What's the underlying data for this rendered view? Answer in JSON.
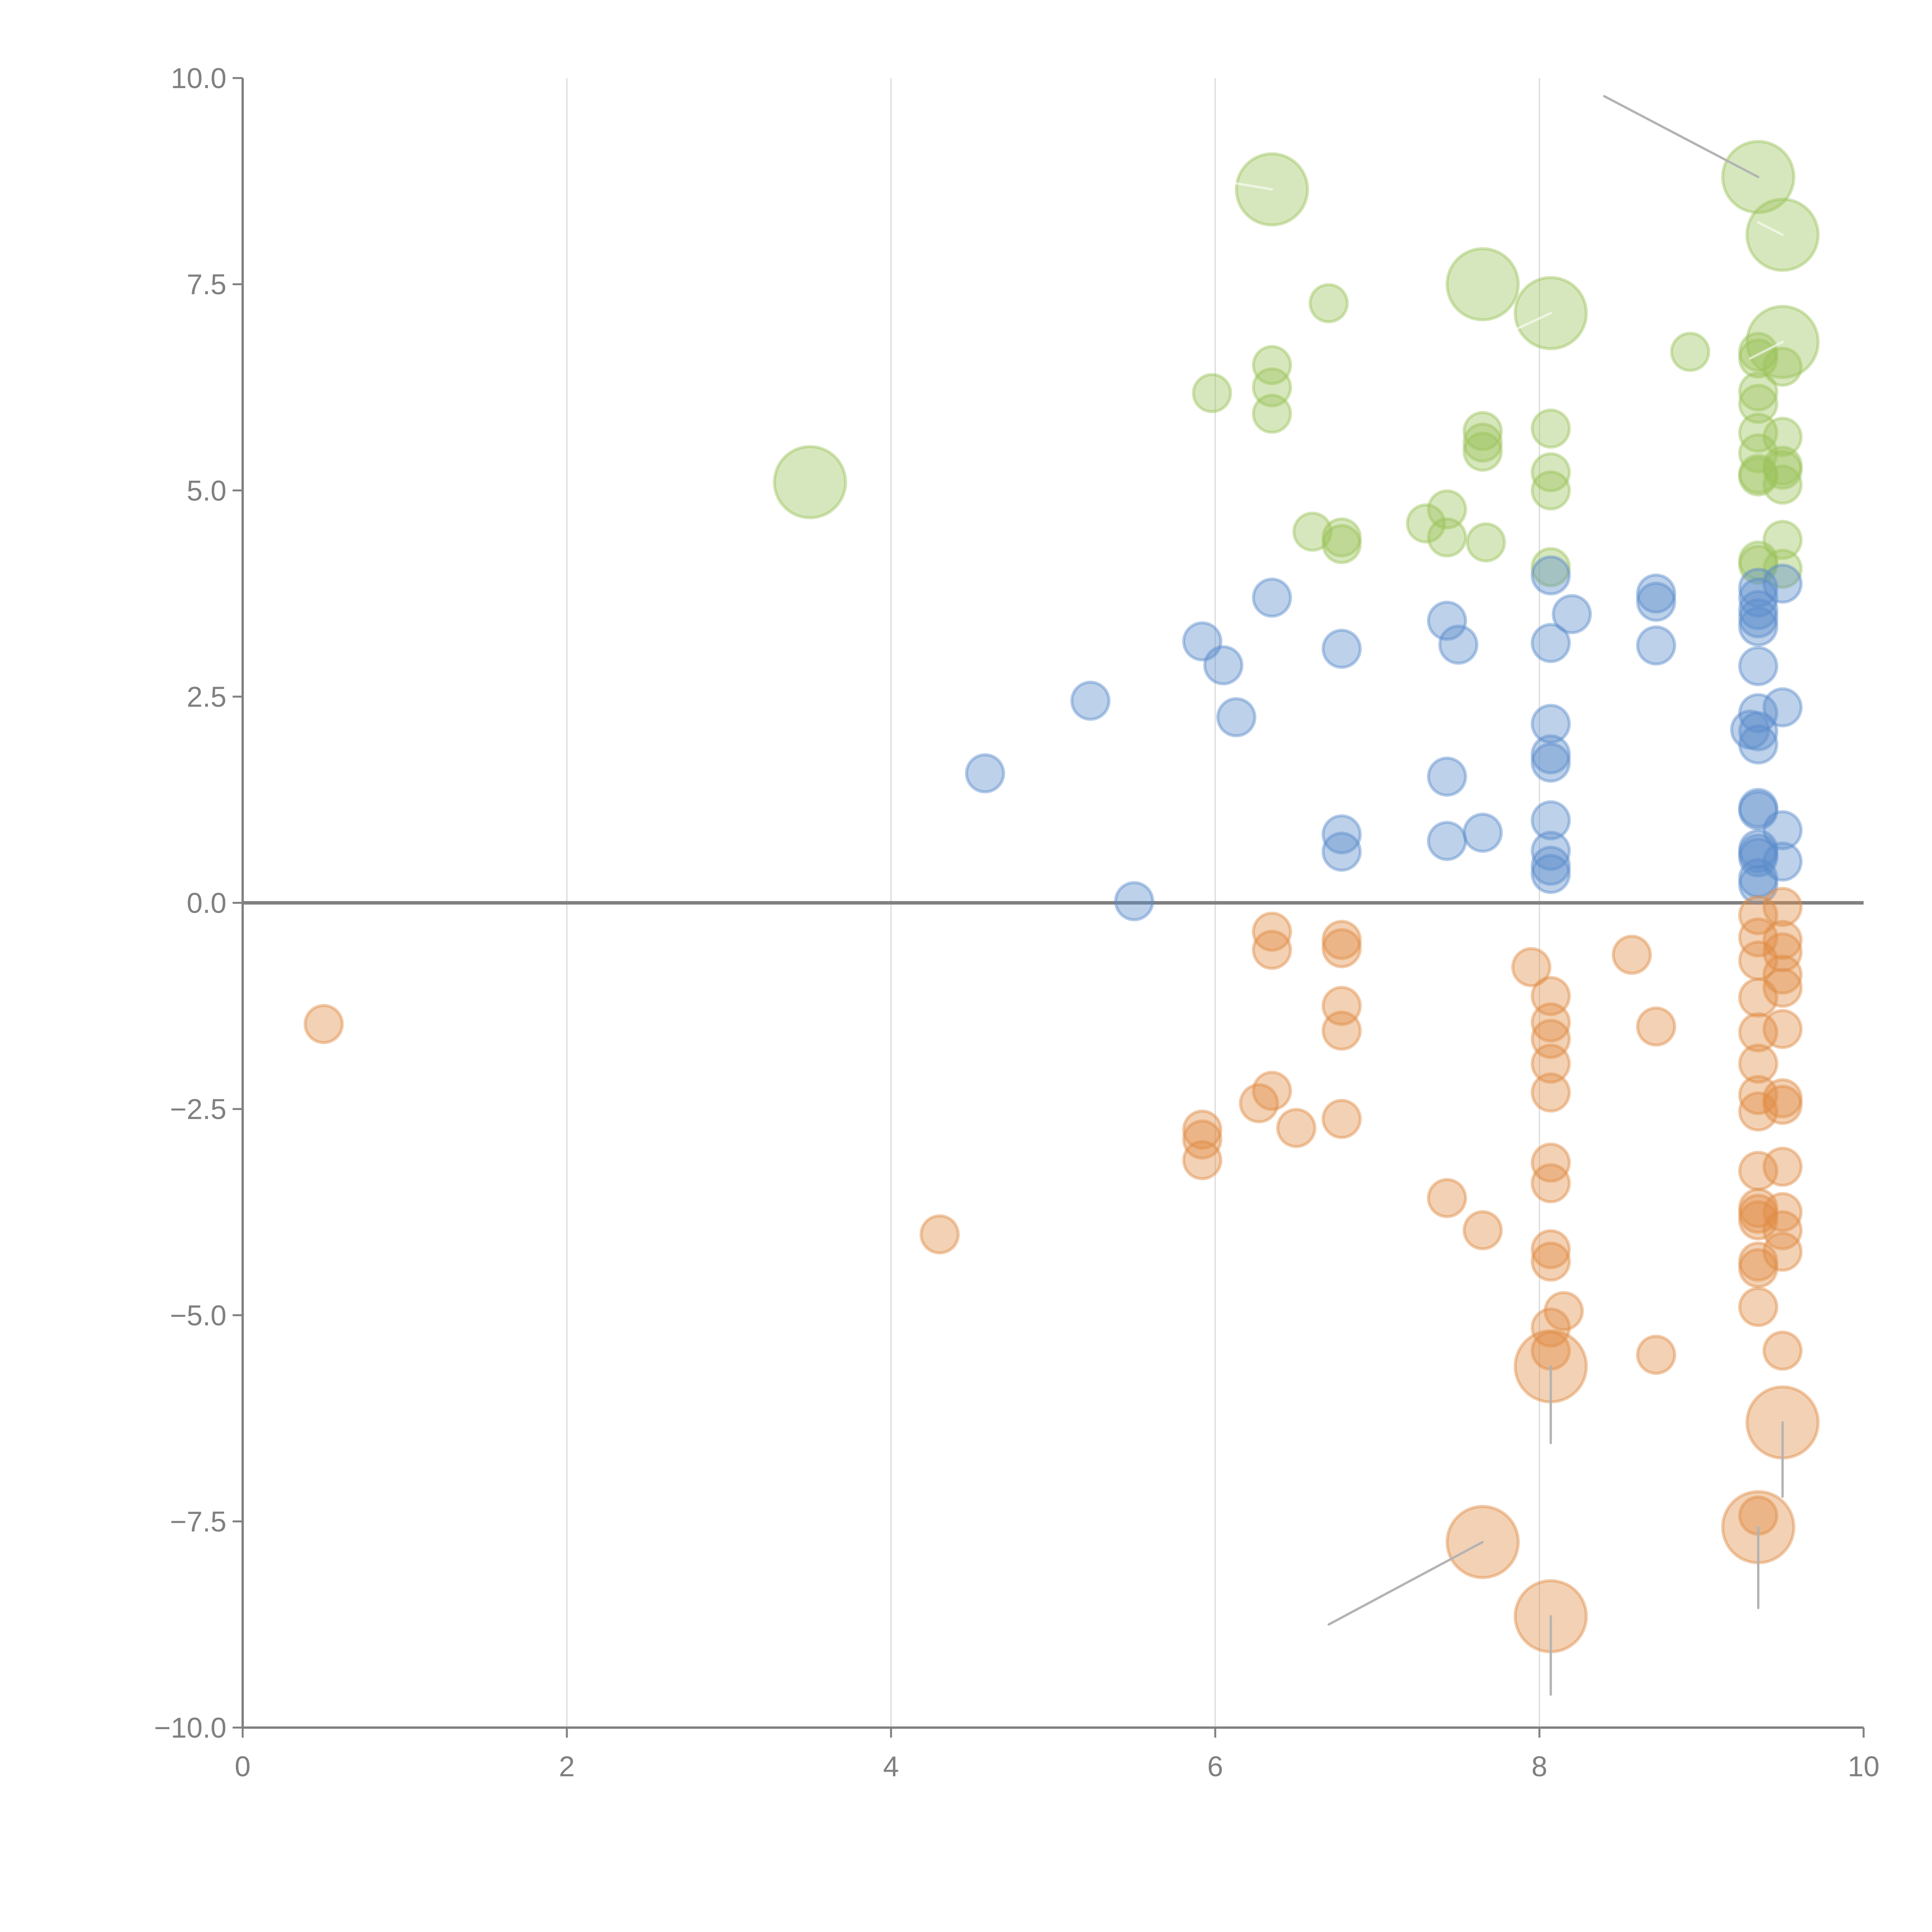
{
  "chart_data": {
    "type": "scatter",
    "subtype": "bubble",
    "title": "",
    "xlabel": "",
    "ylabel": "",
    "xlim": [
      0,
      10
    ],
    "ylim": [
      -10,
      10
    ],
    "x_ticks": [
      "0",
      "2",
      "4",
      "6",
      "8",
      "10"
    ],
    "y_ticks": [
      "10.0",
      "7.5",
      "5.0",
      "2.5",
      "0.0",
      "−2.5",
      "−5.0",
      "−7.5",
      "−10.0"
    ],
    "x_tick_values": [
      0,
      2,
      4,
      6,
      8,
      10
    ],
    "y_tick_values": [
      10,
      7.5,
      5,
      2.5,
      0,
      -2.5,
      -5,
      -7.5,
      -10
    ],
    "grid": "vertical",
    "zero_line": true,
    "legend": "none",
    "series": [
      {
        "name": "green",
        "color": "#9cc35a",
        "points": [
          {
            "x": 6.35,
            "y": 8.65,
            "size": 3
          },
          {
            "x": 9.35,
            "y": 8.8,
            "size": 3
          },
          {
            "x": 9.5,
            "y": 8.1,
            "size": 3
          },
          {
            "x": 7.65,
            "y": 7.5,
            "size": 3
          },
          {
            "x": 8.07,
            "y": 7.15,
            "size": 3
          },
          {
            "x": 6.7,
            "y": 7.27,
            "size": 1
          },
          {
            "x": 9.5,
            "y": 6.8,
            "size": 3
          },
          {
            "x": 8.93,
            "y": 6.68,
            "size": 1
          },
          {
            "x": 9.35,
            "y": 6.68,
            "size": 1
          },
          {
            "x": 9.35,
            "y": 6.6,
            "size": 1
          },
          {
            "x": 9.5,
            "y": 6.5,
            "size": 1
          },
          {
            "x": 6.35,
            "y": 6.52,
            "size": 1
          },
          {
            "x": 6.35,
            "y": 6.25,
            "size": 1
          },
          {
            "x": 5.98,
            "y": 6.18,
            "size": 1
          },
          {
            "x": 6.35,
            "y": 5.93,
            "size": 1
          },
          {
            "x": 9.35,
            "y": 6.2,
            "size": 1
          },
          {
            "x": 9.35,
            "y": 6.05,
            "size": 1
          },
          {
            "x": 9.35,
            "y": 5.7,
            "size": 1
          },
          {
            "x": 9.5,
            "y": 5.65,
            "size": 1
          },
          {
            "x": 7.65,
            "y": 5.72,
            "size": 1
          },
          {
            "x": 7.65,
            "y": 5.58,
            "size": 1
          },
          {
            "x": 7.65,
            "y": 5.47,
            "size": 1
          },
          {
            "x": 8.07,
            "y": 5.75,
            "size": 1
          },
          {
            "x": 9.35,
            "y": 5.45,
            "size": 1
          },
          {
            "x": 9.5,
            "y": 5.3,
            "size": 1
          },
          {
            "x": 9.5,
            "y": 5.25,
            "size": 1
          },
          {
            "x": 9.35,
            "y": 5.2,
            "size": 1
          },
          {
            "x": 9.35,
            "y": 5.17,
            "size": 1
          },
          {
            "x": 8.07,
            "y": 5.22,
            "size": 1
          },
          {
            "x": 9.5,
            "y": 5.07,
            "size": 1
          },
          {
            "x": 8.07,
            "y": 5.0,
            "size": 1
          },
          {
            "x": 3.5,
            "y": 5.1,
            "size": 3
          },
          {
            "x": 7.43,
            "y": 4.77,
            "size": 1
          },
          {
            "x": 7.3,
            "y": 4.6,
            "size": 1
          },
          {
            "x": 6.6,
            "y": 4.5,
            "size": 1
          },
          {
            "x": 6.78,
            "y": 4.43,
            "size": 1
          },
          {
            "x": 6.78,
            "y": 4.35,
            "size": 1
          },
          {
            "x": 7.43,
            "y": 4.43,
            "size": 1
          },
          {
            "x": 7.67,
            "y": 4.37,
            "size": 1
          },
          {
            "x": 9.5,
            "y": 4.4,
            "size": 1
          },
          {
            "x": 9.35,
            "y": 4.15,
            "size": 1
          },
          {
            "x": 9.35,
            "y": 4.1,
            "size": 1
          },
          {
            "x": 9.5,
            "y": 4.05,
            "size": 1
          },
          {
            "x": 8.07,
            "y": 4.07,
            "size": 1
          }
        ]
      },
      {
        "name": "blue",
        "color": "#5b8bcb",
        "points": [
          {
            "x": 8.07,
            "y": 3.97,
            "size": 1
          },
          {
            "x": 9.5,
            "y": 3.87,
            "size": 1
          },
          {
            "x": 9.35,
            "y": 3.82,
            "size": 1
          },
          {
            "x": 8.72,
            "y": 3.75,
            "size": 1
          },
          {
            "x": 8.72,
            "y": 3.65,
            "size": 1
          },
          {
            "x": 9.35,
            "y": 3.7,
            "size": 1
          },
          {
            "x": 6.35,
            "y": 3.7,
            "size": 1
          },
          {
            "x": 9.35,
            "y": 3.55,
            "size": 1
          },
          {
            "x": 9.35,
            "y": 3.45,
            "size": 1
          },
          {
            "x": 8.2,
            "y": 3.5,
            "size": 1
          },
          {
            "x": 7.43,
            "y": 3.42,
            "size": 1
          },
          {
            "x": 9.35,
            "y": 3.35,
            "size": 1
          },
          {
            "x": 5.92,
            "y": 3.17,
            "size": 1
          },
          {
            "x": 8.07,
            "y": 3.15,
            "size": 1
          },
          {
            "x": 7.5,
            "y": 3.13,
            "size": 1
          },
          {
            "x": 8.72,
            "y": 3.12,
            "size": 1
          },
          {
            "x": 6.78,
            "y": 3.08,
            "size": 1
          },
          {
            "x": 6.05,
            "y": 2.88,
            "size": 1
          },
          {
            "x": 9.35,
            "y": 2.87,
            "size": 1
          },
          {
            "x": 5.23,
            "y": 2.45,
            "size": 1
          },
          {
            "x": 9.5,
            "y": 2.37,
            "size": 1
          },
          {
            "x": 9.35,
            "y": 2.3,
            "size": 1
          },
          {
            "x": 6.13,
            "y": 2.25,
            "size": 1
          },
          {
            "x": 8.07,
            "y": 2.17,
            "size": 1
          },
          {
            "x": 9.3,
            "y": 2.1,
            "size": 1
          },
          {
            "x": 9.35,
            "y": 2.08,
            "size": 1
          },
          {
            "x": 9.35,
            "y": 1.92,
            "size": 1
          },
          {
            "x": 8.07,
            "y": 1.8,
            "size": 1
          },
          {
            "x": 8.07,
            "y": 1.7,
            "size": 1
          },
          {
            "x": 4.58,
            "y": 1.57,
            "size": 1
          },
          {
            "x": 7.43,
            "y": 1.53,
            "size": 1
          },
          {
            "x": 9.35,
            "y": 1.15,
            "size": 1
          },
          {
            "x": 9.35,
            "y": 1.12,
            "size": 1
          },
          {
            "x": 8.07,
            "y": 1.0,
            "size": 1
          },
          {
            "x": 9.5,
            "y": 0.88,
            "size": 1
          },
          {
            "x": 7.65,
            "y": 0.85,
            "size": 1
          },
          {
            "x": 6.78,
            "y": 0.83,
            "size": 1
          },
          {
            "x": 7.43,
            "y": 0.75,
            "size": 1
          },
          {
            "x": 9.35,
            "y": 0.65,
            "size": 1
          },
          {
            "x": 8.07,
            "y": 0.63,
            "size": 1
          },
          {
            "x": 6.78,
            "y": 0.62,
            "size": 1
          },
          {
            "x": 9.35,
            "y": 0.6,
            "size": 1
          },
          {
            "x": 9.35,
            "y": 0.55,
            "size": 1
          },
          {
            "x": 9.5,
            "y": 0.5,
            "size": 1
          },
          {
            "x": 8.07,
            "y": 0.45,
            "size": 1
          },
          {
            "x": 8.07,
            "y": 0.35,
            "size": 1
          },
          {
            "x": 9.35,
            "y": 0.3,
            "size": 1
          },
          {
            "x": 9.35,
            "y": 0.22,
            "size": 1
          },
          {
            "x": 5.5,
            "y": 0.02,
            "size": 1
          }
        ]
      },
      {
        "name": "orange",
        "color": "#e08b44",
        "points": [
          {
            "x": 9.5,
            "y": -0.05,
            "size": 1
          },
          {
            "x": 9.35,
            "y": -0.15,
            "size": 1
          },
          {
            "x": 6.35,
            "y": -0.35,
            "size": 1
          },
          {
            "x": 9.35,
            "y": -0.42,
            "size": 1
          },
          {
            "x": 9.5,
            "y": -0.45,
            "size": 1
          },
          {
            "x": 6.78,
            "y": -0.45,
            "size": 1
          },
          {
            "x": 6.78,
            "y": -0.55,
            "size": 1
          },
          {
            "x": 6.35,
            "y": -0.57,
            "size": 1
          },
          {
            "x": 9.5,
            "y": -0.6,
            "size": 1
          },
          {
            "x": 8.57,
            "y": -0.63,
            "size": 1
          },
          {
            "x": 9.35,
            "y": -0.7,
            "size": 1
          },
          {
            "x": 7.95,
            "y": -0.78,
            "size": 1
          },
          {
            "x": 9.5,
            "y": -0.87,
            "size": 1
          },
          {
            "x": 9.5,
            "y": -1.03,
            "size": 1
          },
          {
            "x": 8.07,
            "y": -1.13,
            "size": 1
          },
          {
            "x": 9.35,
            "y": -1.15,
            "size": 1
          },
          {
            "x": 6.78,
            "y": -1.25,
            "size": 1
          },
          {
            "x": 0.5,
            "y": -1.47,
            "size": 1
          },
          {
            "x": 8.07,
            "y": -1.45,
            "size": 1
          },
          {
            "x": 8.72,
            "y": -1.5,
            "size": 1
          },
          {
            "x": 9.5,
            "y": -1.53,
            "size": 1
          },
          {
            "x": 6.78,
            "y": -1.55,
            "size": 1
          },
          {
            "x": 9.35,
            "y": -1.57,
            "size": 1
          },
          {
            "x": 8.07,
            "y": -1.65,
            "size": 1
          },
          {
            "x": 8.07,
            "y": -1.95,
            "size": 1
          },
          {
            "x": 9.35,
            "y": -1.95,
            "size": 1
          },
          {
            "x": 6.35,
            "y": -2.28,
            "size": 1
          },
          {
            "x": 8.07,
            "y": -2.3,
            "size": 1
          },
          {
            "x": 9.35,
            "y": -2.33,
            "size": 1
          },
          {
            "x": 6.27,
            "y": -2.43,
            "size": 1
          },
          {
            "x": 9.5,
            "y": -2.37,
            "size": 1
          },
          {
            "x": 9.5,
            "y": -2.45,
            "size": 1
          },
          {
            "x": 9.35,
            "y": -2.53,
            "size": 1
          },
          {
            "x": 6.78,
            "y": -2.62,
            "size": 1
          },
          {
            "x": 6.5,
            "y": -2.73,
            "size": 1
          },
          {
            "x": 5.92,
            "y": -2.75,
            "size": 1
          },
          {
            "x": 5.92,
            "y": -2.87,
            "size": 1
          },
          {
            "x": 5.92,
            "y": -3.12,
            "size": 1
          },
          {
            "x": 8.07,
            "y": -3.15,
            "size": 1
          },
          {
            "x": 9.5,
            "y": -3.2,
            "size": 1
          },
          {
            "x": 9.35,
            "y": -3.25,
            "size": 1
          },
          {
            "x": 8.07,
            "y": -3.4,
            "size": 1
          },
          {
            "x": 7.43,
            "y": -3.58,
            "size": 1
          },
          {
            "x": 9.35,
            "y": -3.7,
            "size": 1
          },
          {
            "x": 9.5,
            "y": -3.75,
            "size": 1
          },
          {
            "x": 9.35,
            "y": -3.77,
            "size": 1
          },
          {
            "x": 9.35,
            "y": -3.85,
            "size": 1
          },
          {
            "x": 7.65,
            "y": -3.97,
            "size": 1
          },
          {
            "x": 9.5,
            "y": -3.97,
            "size": 1
          },
          {
            "x": 4.3,
            "y": -4.02,
            "size": 1
          },
          {
            "x": 8.07,
            "y": -4.2,
            "size": 1
          },
          {
            "x": 9.5,
            "y": -4.23,
            "size": 1
          },
          {
            "x": 9.35,
            "y": -4.35,
            "size": 1
          },
          {
            "x": 8.07,
            "y": -4.35,
            "size": 1
          },
          {
            "x": 9.35,
            "y": -4.43,
            "size": 1
          },
          {
            "x": 9.35,
            "y": -4.9,
            "size": 1
          },
          {
            "x": 8.15,
            "y": -4.95,
            "size": 1
          },
          {
            "x": 8.07,
            "y": -5.15,
            "size": 1
          },
          {
            "x": 8.07,
            "y": -5.43,
            "size": 1
          },
          {
            "x": 9.5,
            "y": -5.43,
            "size": 1
          },
          {
            "x": 8.72,
            "y": -5.48,
            "size": 1
          },
          {
            "x": 8.07,
            "y": -5.62,
            "size": 3
          },
          {
            "x": 9.5,
            "y": -6.3,
            "size": 3
          },
          {
            "x": 9.35,
            "y": -7.43,
            "size": 1
          },
          {
            "x": 9.35,
            "y": -7.57,
            "size": 3
          },
          {
            "x": 7.65,
            "y": -7.75,
            "size": 3
          },
          {
            "x": 8.07,
            "y": -8.65,
            "size": 3
          }
        ]
      }
    ],
    "annotations": [
      {
        "type": "leader-line",
        "from": [
          9.35,
          8.8
        ],
        "to": [
          8.4,
          9.78
        ],
        "color": "#b3b3b3",
        "label": ""
      },
      {
        "type": "leader-line",
        "from": [
          8.07,
          -5.62
        ],
        "to": [
          8.07,
          -6.55
        ],
        "color": "#b3b3b3",
        "label": ""
      },
      {
        "type": "leader-line",
        "from": [
          9.5,
          -6.3
        ],
        "to": [
          9.5,
          -7.2
        ],
        "color": "#b3b3b3",
        "label": ""
      },
      {
        "type": "leader-line",
        "from": [
          9.35,
          -7.57
        ],
        "to": [
          9.35,
          -8.55
        ],
        "color": "#b3b3b3",
        "label": ""
      },
      {
        "type": "leader-line",
        "from": [
          7.65,
          -7.75
        ],
        "to": [
          6.7,
          -8.75
        ],
        "color": "#b3b3b3",
        "label": ""
      },
      {
        "type": "leader-line",
        "from": [
          8.07,
          -8.65
        ],
        "to": [
          8.07,
          -9.6
        ],
        "color": "#b3b3b3",
        "label": ""
      },
      {
        "type": "leader-line",
        "from": [
          6.35,
          8.65
        ],
        "to": [
          6.05,
          8.75
        ],
        "color": "#ffffff",
        "label": ""
      },
      {
        "type": "leader-line",
        "from": [
          9.5,
          8.1
        ],
        "to": [
          9.35,
          8.25
        ],
        "color": "#ffffff",
        "label": ""
      },
      {
        "type": "leader-line",
        "from": [
          8.07,
          7.15
        ],
        "to": [
          7.85,
          6.95
        ],
        "color": "#ffffff",
        "label": ""
      },
      {
        "type": "leader-line",
        "from": [
          9.5,
          6.8
        ],
        "to": [
          9.3,
          6.6
        ],
        "color": "#ffffff",
        "label": ""
      }
    ]
  }
}
